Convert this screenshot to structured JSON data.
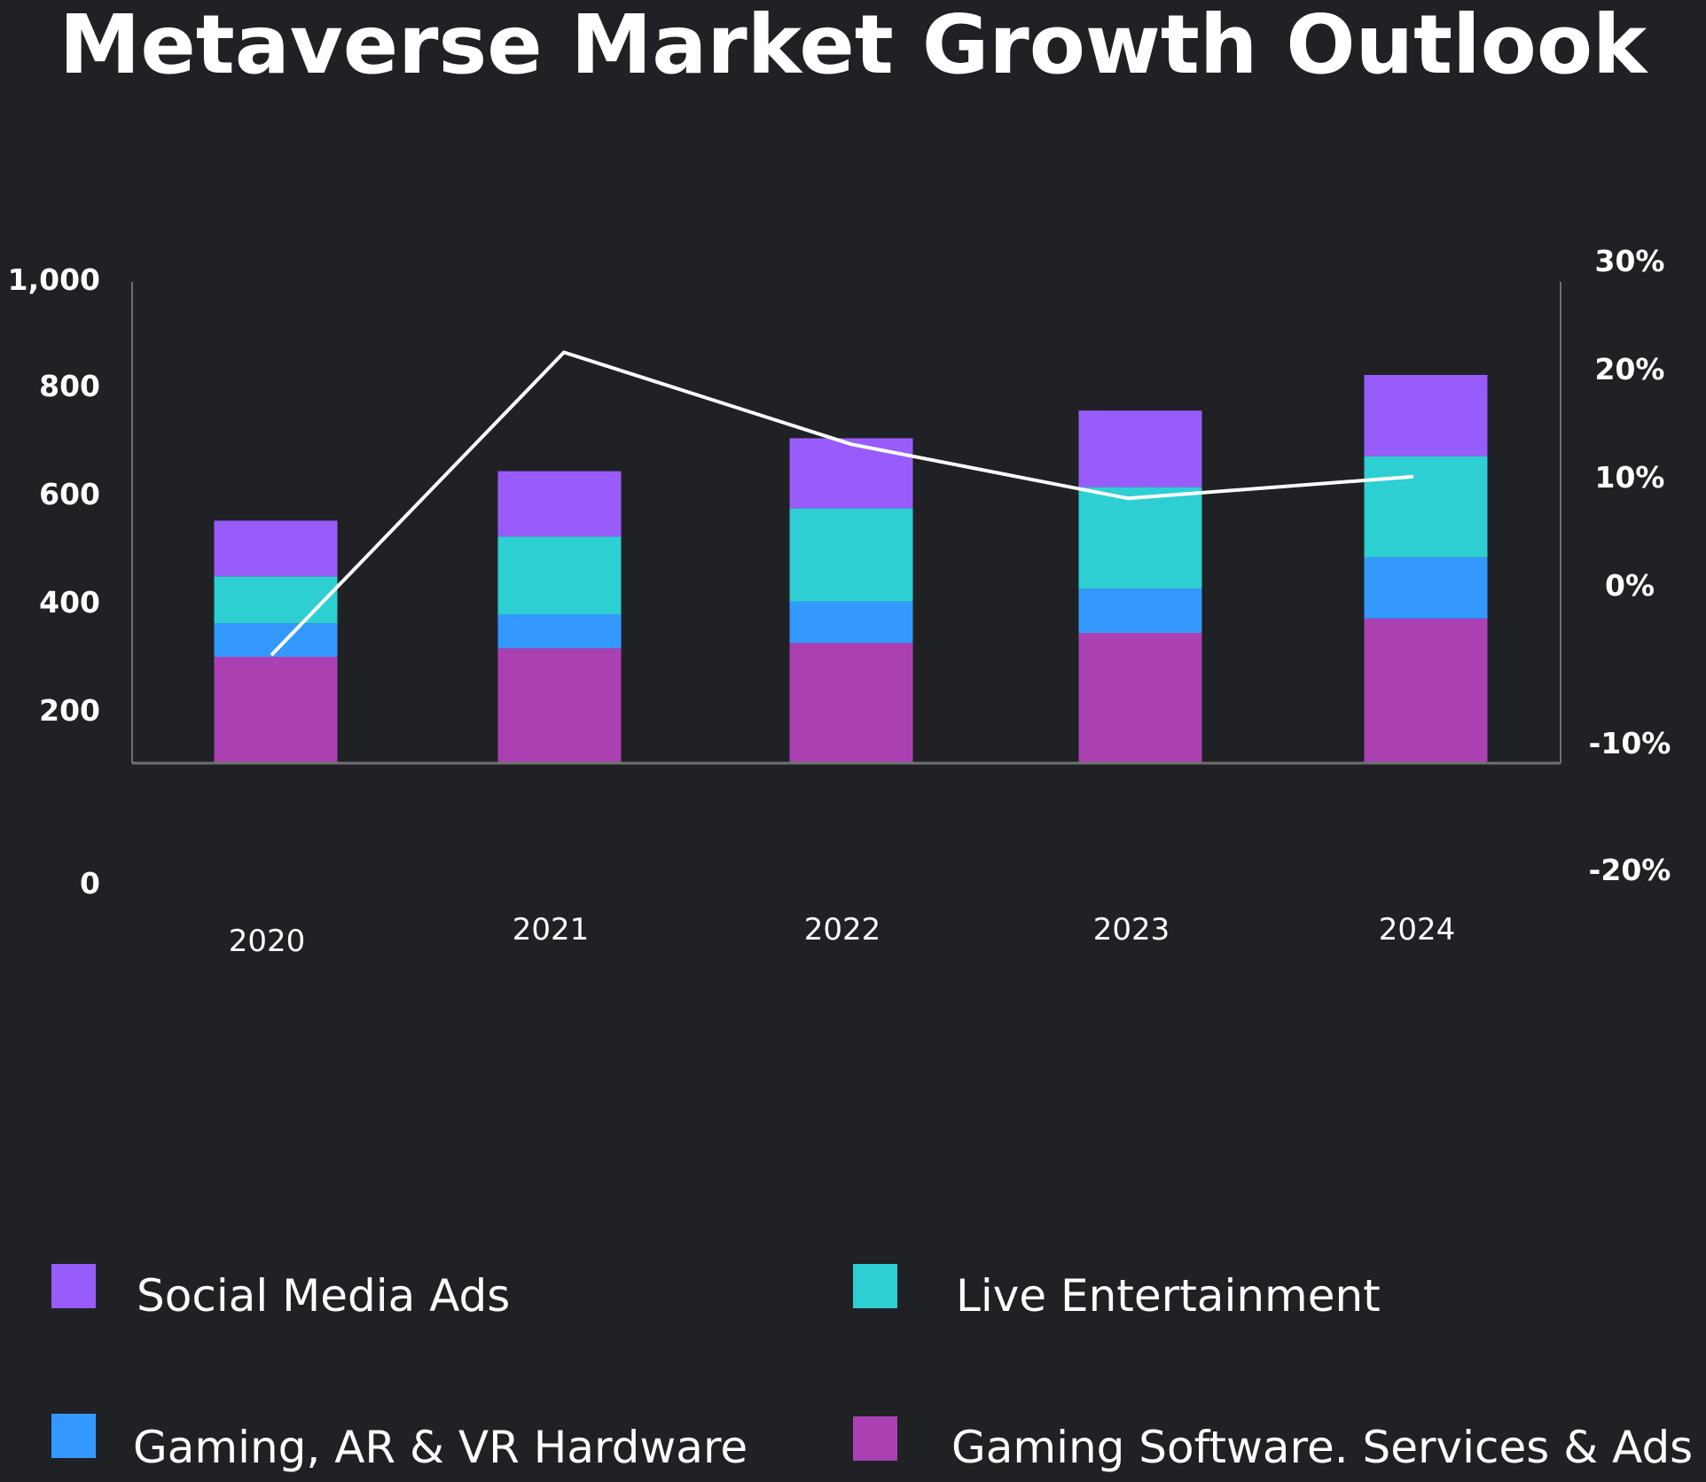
{
  "chart_data": {
    "type": "bar",
    "stacked": true,
    "title": "Metaverse Market Growth Outlook",
    "categories": [
      "2020",
      "2021",
      "2022",
      "2023",
      "2024"
    ],
    "series": [
      {
        "name": "Gaming Software. Services & Ads",
        "values": [
          200,
          216,
          226,
          245,
          272
        ],
        "color": "#ab40b2"
      },
      {
        "name": "Gaming, AR & VR Hardware",
        "values": [
          63,
          64,
          78,
          83,
          115
        ],
        "color": "#3399ff"
      },
      {
        "name": "Live Entertainment",
        "values": [
          88,
          146,
          175,
          191,
          190
        ],
        "color": "#2ecfd3"
      },
      {
        "name": "Social Media Ads",
        "values": [
          105,
          123,
          132,
          144,
          153
        ],
        "color": "#975cfa"
      }
    ],
    "line_series": {
      "axis": "right",
      "color": "#ffffff",
      "values": [
        -5.5,
        22.5,
        14,
        9,
        11
      ]
    },
    "left_axis": {
      "ticks": [
        "1,000",
        "800",
        "600",
        "400",
        "200",
        "0"
      ]
    },
    "right_axis": {
      "ticks": [
        "30%",
        "20%",
        "10%",
        "0%",
        "-10%",
        "-20%"
      ],
      "range": [
        -20,
        30
      ]
    },
    "legend": {
      "placement": "bottom",
      "items": [
        {
          "label": "Social Media Ads",
          "color": "#975cfa"
        },
        {
          "label": "Live Entertainment",
          "color": "#2ecfd3"
        },
        {
          "label": "Gaming, AR & VR Hardware",
          "color": "#3399ff"
        },
        {
          "label": "Gaming Software. Services & Ads",
          "color": "#ab40b2"
        }
      ]
    }
  }
}
